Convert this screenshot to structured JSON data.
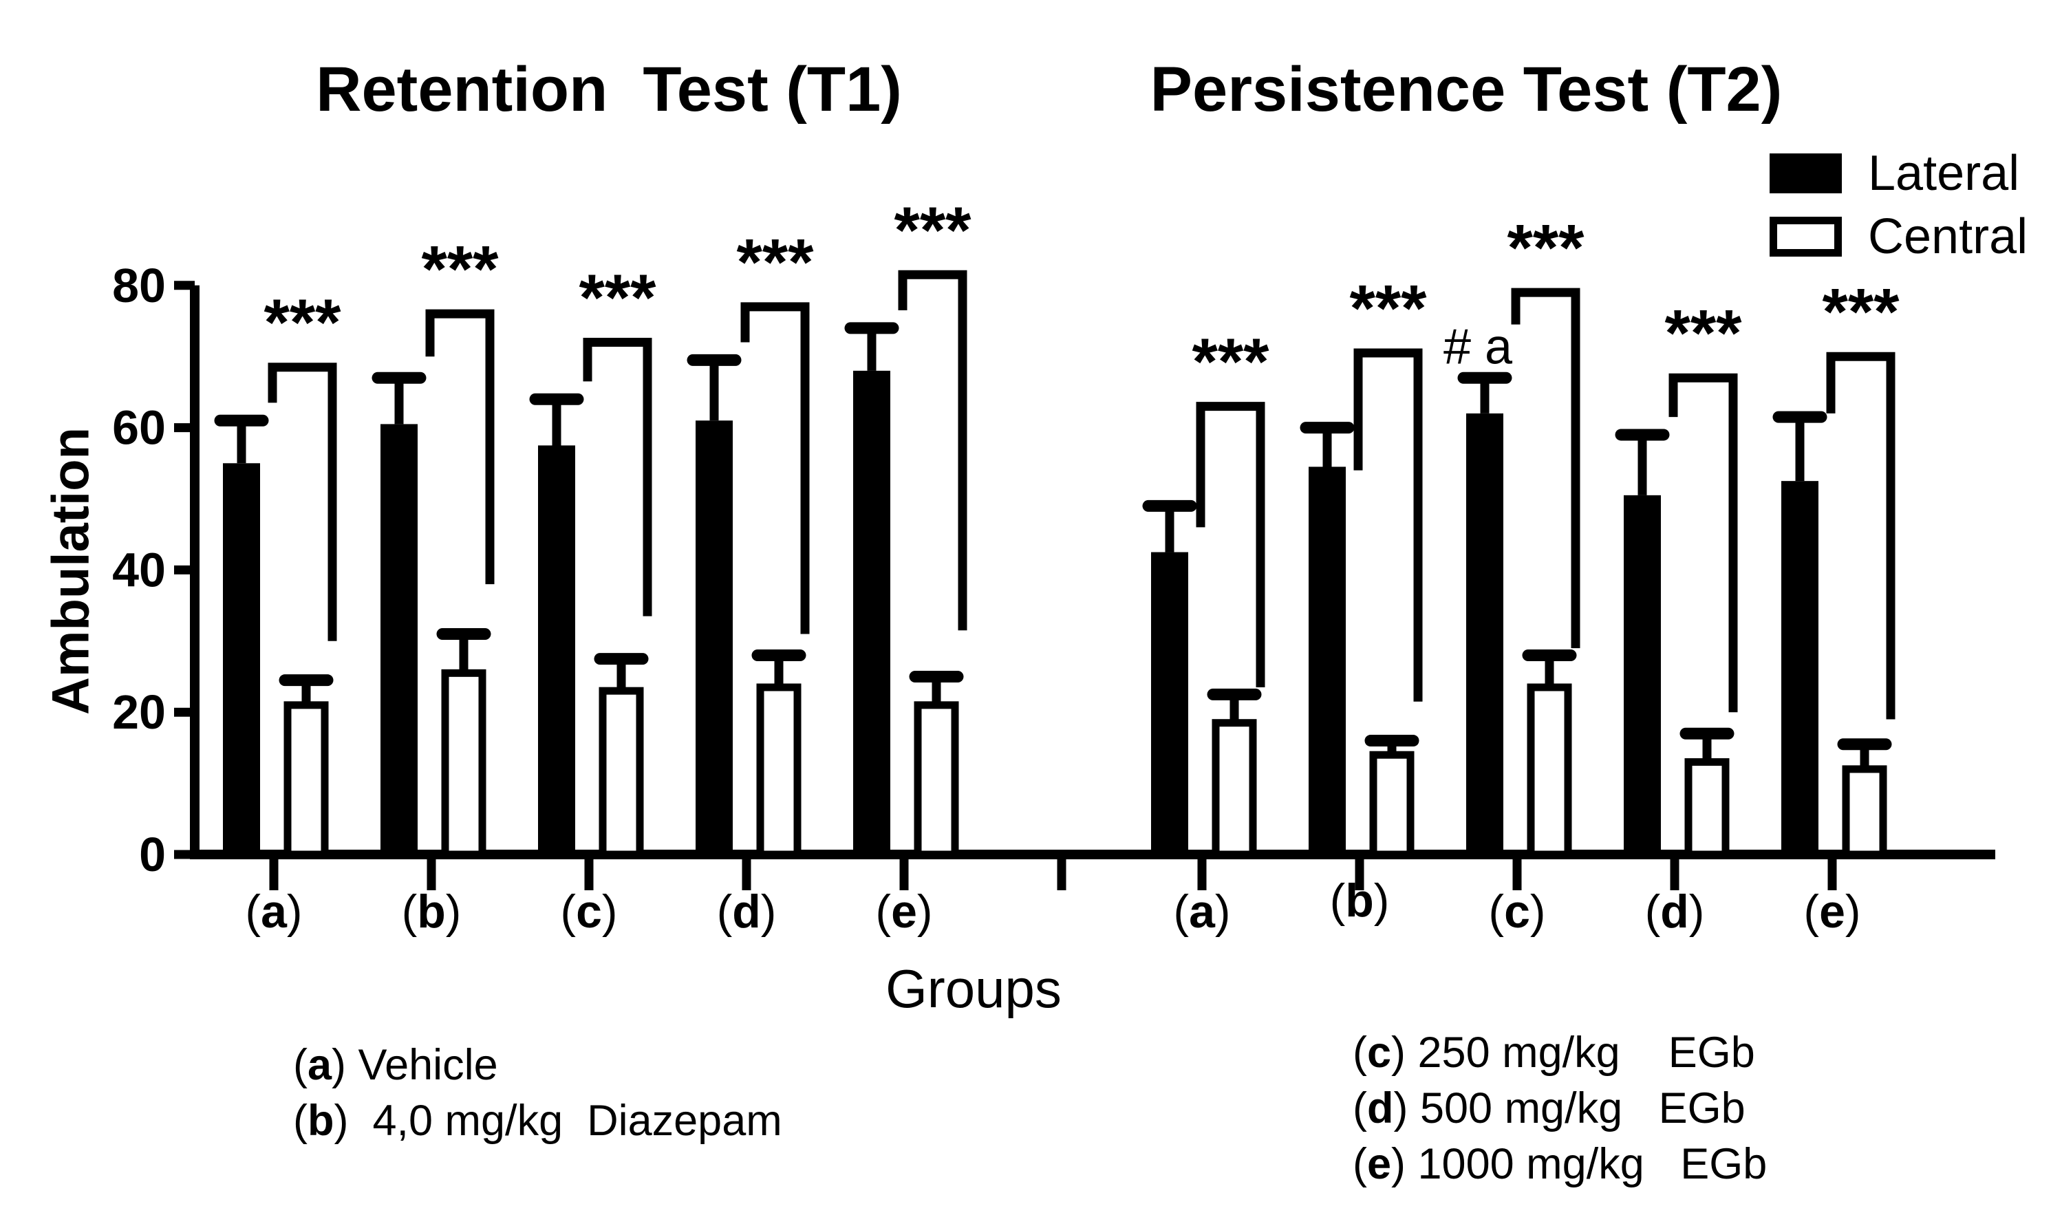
{
  "page": {
    "background": "#ffffff",
    "ink": "#000000"
  },
  "footnotes": {
    "left": [
      {
        "marker": "(a)",
        "text": " Vehicle"
      },
      {
        "marker": "(b)",
        "text": "  4,0 mg/kg  Diazepam"
      }
    ],
    "right": [
      {
        "marker": "(c)",
        "text": " 250 mg/kg    EGb"
      },
      {
        "marker": "(d)",
        "text": " 500 mg/kg   EGb"
      },
      {
        "marker": "(e)",
        "text": " 1000 mg/kg   EGb"
      }
    ]
  },
  "chart_data": {
    "type": "bar",
    "ylabel": "Ambulation",
    "xlabel": "Groups",
    "ylim": [
      0,
      80
    ],
    "yticks": [
      0,
      20,
      40,
      60,
      80
    ],
    "grid": false,
    "legend": {
      "position": "top-right",
      "entries": [
        "Lateral",
        "Central"
      ],
      "fills": [
        "#000000",
        "#ffffff"
      ]
    },
    "panels": [
      {
        "title": "Retention  Test (T1)",
        "categories": [
          "(a)",
          "(b)",
          "(c)",
          "(d)",
          "(e)"
        ],
        "series": [
          {
            "name": "Lateral",
            "fill": "#000000",
            "values": [
              55,
              60.5,
              57.5,
              61,
              68
            ],
            "errors_plus": [
              6,
              6.5,
              6.5,
              8.5,
              6
            ]
          },
          {
            "name": "Central",
            "fill": "#ffffff",
            "values": [
              21,
              25.5,
              23,
              23.5,
              21
            ],
            "errors_plus": [
              3.5,
              5.5,
              4.5,
              4.5,
              4
            ]
          }
        ],
        "significance": [
          {
            "label": "***",
            "top": 68.5,
            "left_drop": 63.5,
            "right_drop": 30
          },
          {
            "label": "***",
            "top": 76,
            "left_drop": 70,
            "right_drop": 38
          },
          {
            "label": "***",
            "top": 72,
            "left_drop": 66.5,
            "right_drop": 33.5
          },
          {
            "label": "***",
            "top": 77,
            "left_drop": 72,
            "right_drop": 31
          },
          {
            "label": "***",
            "top": 81.5,
            "left_drop": 76.5,
            "right_drop": 31.5
          }
        ],
        "annotations": []
      },
      {
        "title": "Persistence Test (T2)",
        "categories": [
          "(a)",
          "(b)",
          "(c)",
          "(d)",
          "(e)"
        ],
        "series": [
          {
            "name": "Lateral",
            "fill": "#000000",
            "values": [
              42.5,
              54.5,
              62,
              50.5,
              52.5
            ],
            "errors_plus": [
              6.5,
              5.5,
              5,
              8.5,
              9
            ]
          },
          {
            "name": "Central",
            "fill": "#ffffff",
            "values": [
              18.5,
              14,
              23.5,
              13,
              12
            ],
            "errors_plus": [
              4,
              2,
              4.5,
              4,
              3.5
            ]
          }
        ],
        "significance": [
          {
            "label": "***",
            "top": 63,
            "left_drop": 46,
            "right_drop": 23.5
          },
          {
            "label": "***",
            "top": 70.5,
            "left_drop": 54,
            "right_drop": 21.5
          },
          {
            "label": "***",
            "top": 79,
            "left_drop": 74.5,
            "right_drop": 29
          },
          {
            "label": "***",
            "top": 67,
            "left_drop": 61.5,
            "right_drop": 20
          },
          {
            "label": "***",
            "top": 70,
            "left_drop": 62,
            "right_drop": 19
          }
        ],
        "annotations": [
          {
            "text": "# a",
            "category_index": 2,
            "value_y": 69
          }
        ]
      }
    ]
  }
}
